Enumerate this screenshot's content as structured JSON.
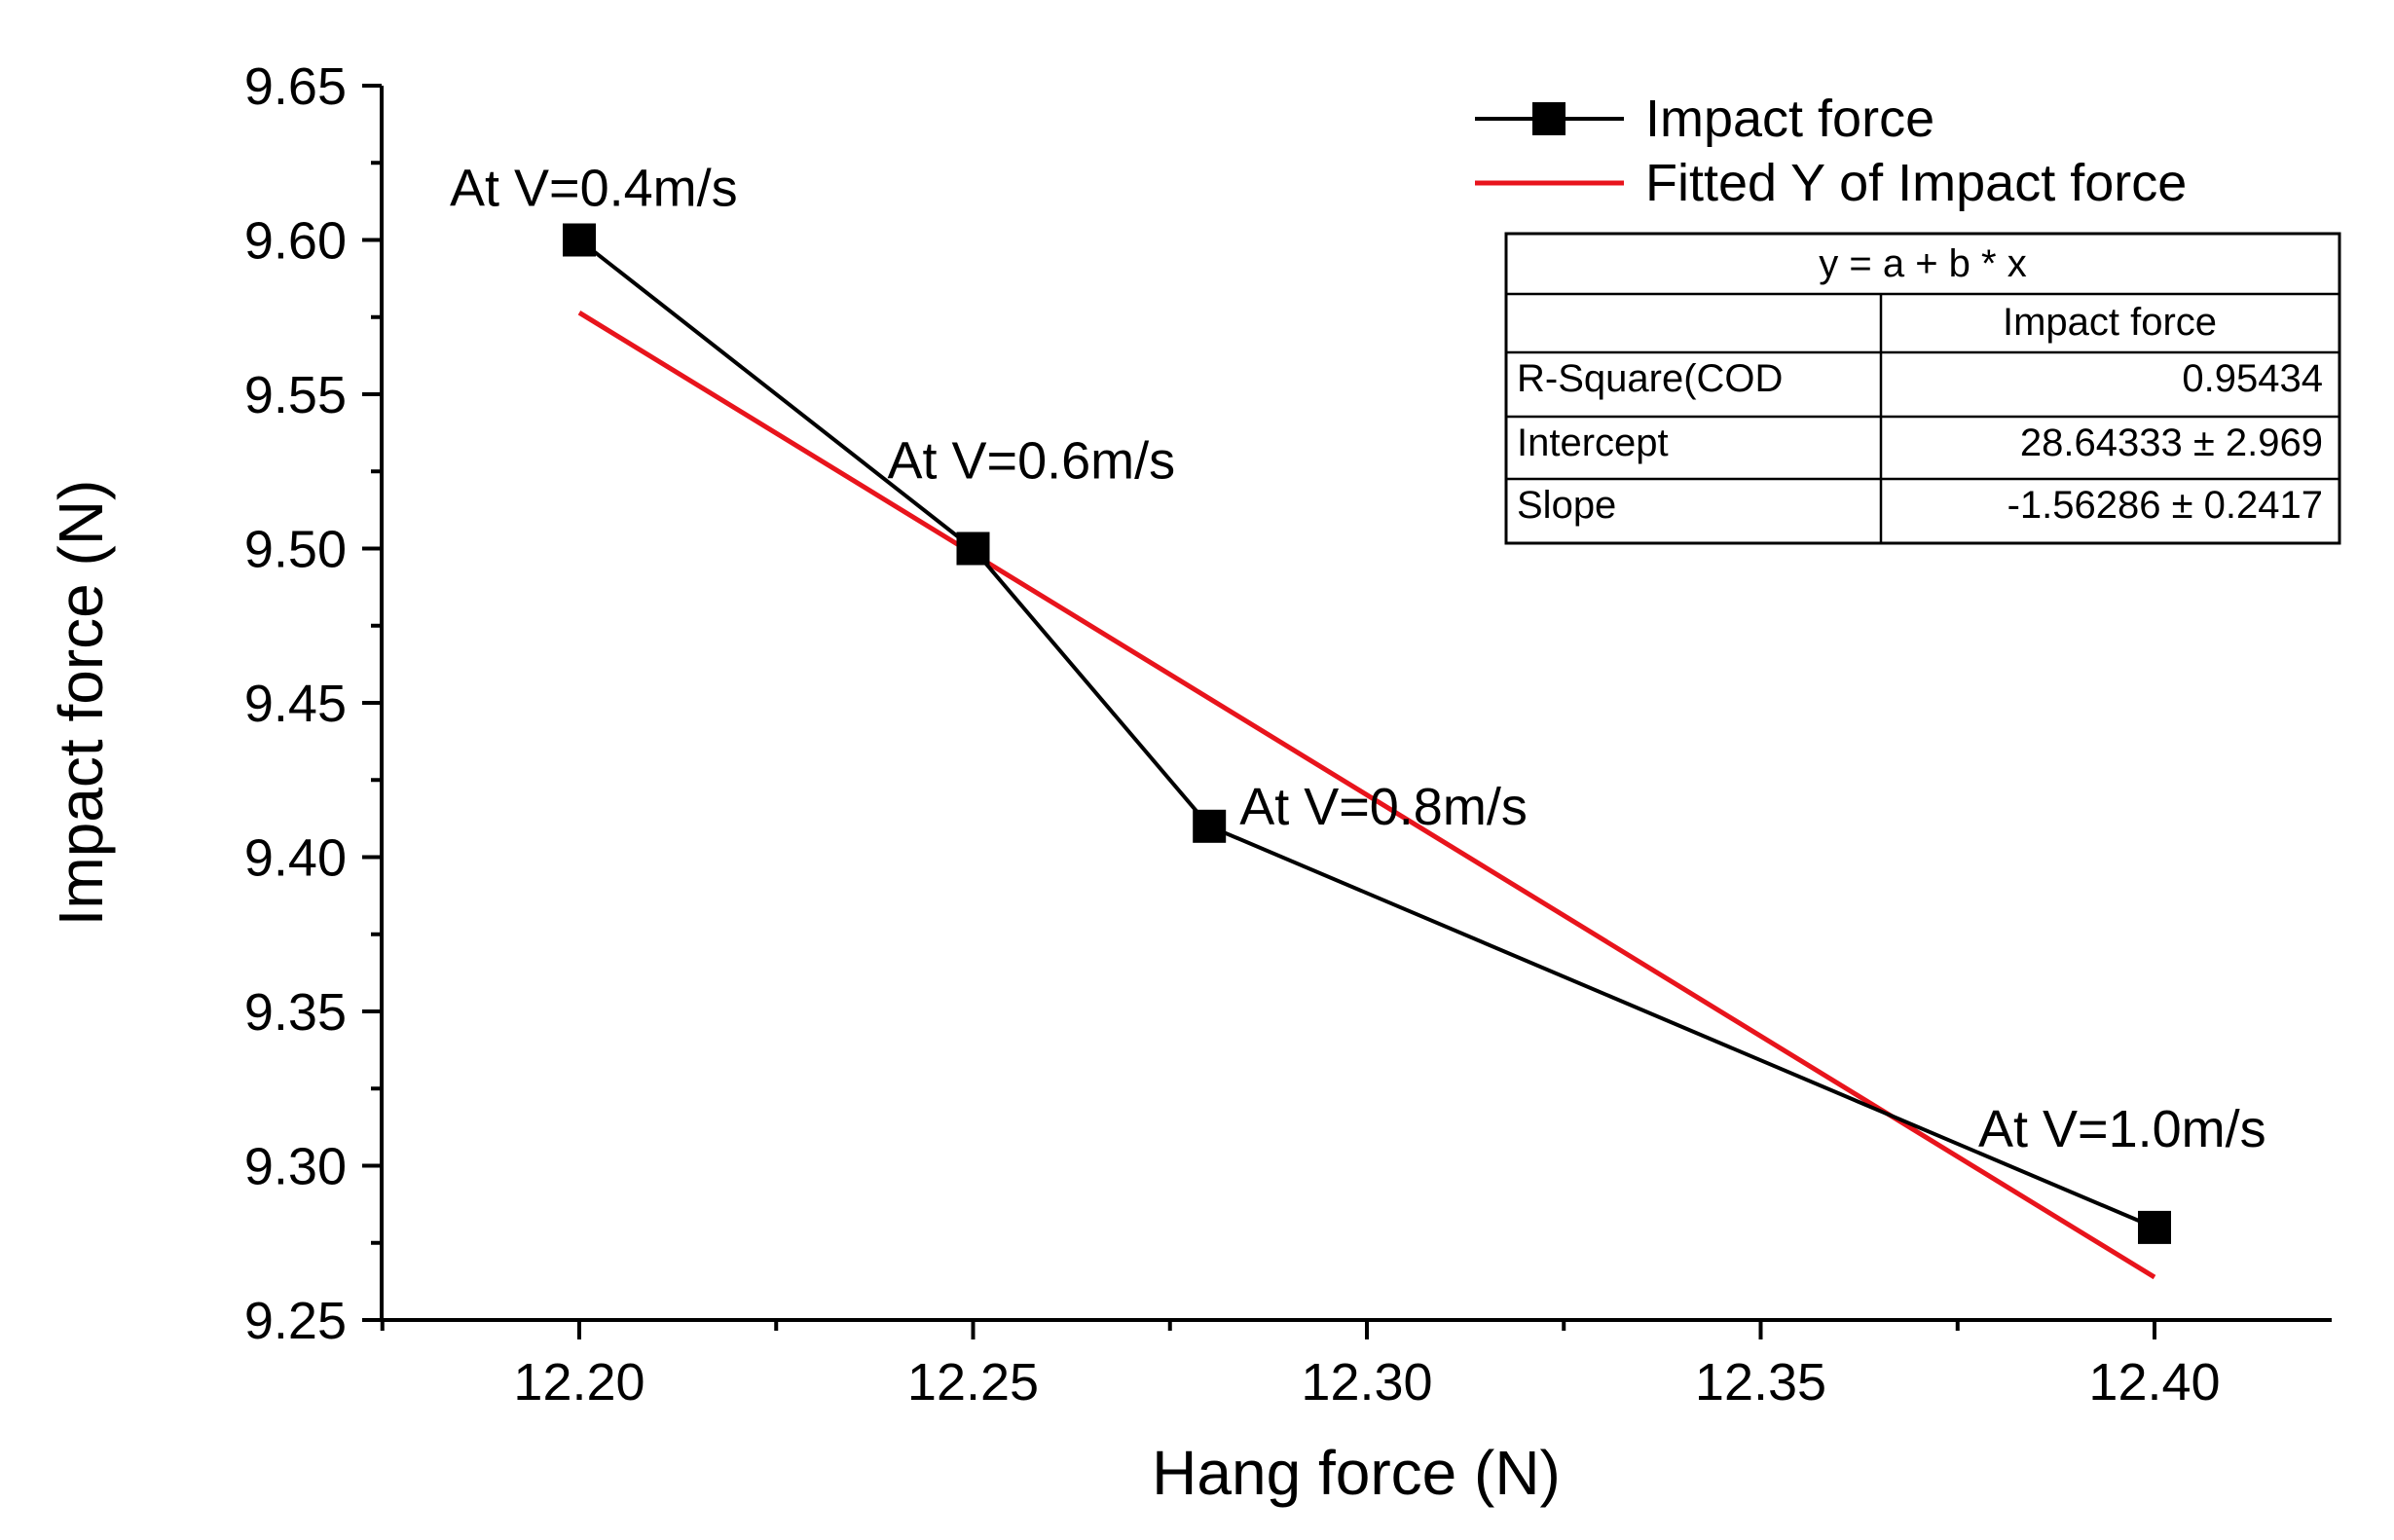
{
  "chart_data": {
    "type": "line",
    "title": "",
    "xlabel": "Hang force (N)",
    "ylabel": "Impact force (N)",
    "xlim": [
      12.175,
      12.425
    ],
    "ylim": [
      9.25,
      9.65
    ],
    "x_ticks": [
      12.2,
      12.25,
      12.3,
      12.35,
      12.4
    ],
    "x_tick_labels": [
      "12.20",
      "12.25",
      "12.30",
      "12.35",
      "12.40"
    ],
    "y_ticks": [
      9.25,
      9.3,
      9.35,
      9.4,
      9.45,
      9.5,
      9.55,
      9.6,
      9.65
    ],
    "y_tick_labels": [
      "9.25",
      "9.30",
      "9.35",
      "9.40",
      "9.45",
      "9.50",
      "9.55",
      "9.60",
      "9.65"
    ],
    "grid": false,
    "series": [
      {
        "name": "Impact force",
        "style": "line-marker",
        "color": "#000000",
        "x": [
          12.2,
          12.25,
          12.28,
          12.4
        ],
        "y": [
          9.6,
          9.5,
          9.41,
          9.28
        ],
        "annotations": [
          "At V=0.4m/s",
          "At V=0.6m/s",
          "At V=0.8m/s",
          "At V=1.0m/s"
        ]
      },
      {
        "name": "Fitted Y of Impact force",
        "style": "line",
        "color": "#e8141c",
        "x": [
          12.2,
          12.4
        ],
        "intercept": 28.64333,
        "slope": -1.56286
      }
    ],
    "legend_position": "top-right",
    "fit_table": {
      "equation": "y = a + b * x",
      "column_header": "Impact force",
      "rows": [
        {
          "label": "R-Square(COD",
          "value": "0.95434"
        },
        {
          "label": "Intercept",
          "value": "28.64333 ± 2.969"
        },
        {
          "label": "Slope",
          "value": "-1.56286 ± 0.2417"
        }
      ]
    }
  }
}
